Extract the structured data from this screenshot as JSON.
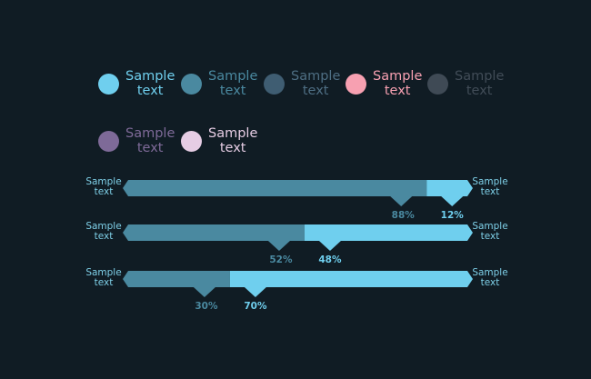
{
  "legend": [
    {
      "label": "Sample\ntext",
      "color": "#6fcfee",
      "text_color": "#6fcfee"
    },
    {
      "label": "Sample\ntext",
      "color": "#4a89a0",
      "text_color": "#4a89a0"
    },
    {
      "label": "Sample\ntext",
      "color": "#3f5d72",
      "text_color": "#4e6e83"
    },
    {
      "label": "Sample\ntext",
      "color": "#f7a0b1",
      "text_color": "#f7a0b1"
    },
    {
      "label": "Sample\ntext",
      "color": "#3f4a55",
      "text_color": "#414c57"
    },
    {
      "label": "Sample\ntext",
      "color": "#7e6a98",
      "text_color": "#7e6a98"
    },
    {
      "label": "Sample\ntext",
      "color": "#e6cde4",
      "text_color": "#e6cde4"
    }
  ],
  "chart_data": {
    "type": "bar",
    "orientation": "horizontal-stacked-100",
    "colors": {
      "dark": "#4a89a0",
      "light": "#6fcfee",
      "text": "#7ecfe7"
    },
    "rows": [
      {
        "left_label": "Sample\ntext",
        "right_label": "Sample\ntext",
        "dark_value": 88,
        "light_value": 12,
        "dark_label": "88%",
        "light_label": "12%"
      },
      {
        "left_label": "Sample\ntext",
        "right_label": "Sample\ntext",
        "dark_value": 52,
        "light_value": 48,
        "dark_label": "52%",
        "light_label": "48%"
      },
      {
        "left_label": "Sample\ntext",
        "right_label": "Sample\ntext",
        "dark_value": 30,
        "light_value": 70,
        "dark_label": "30%",
        "light_label": "70%"
      }
    ]
  }
}
